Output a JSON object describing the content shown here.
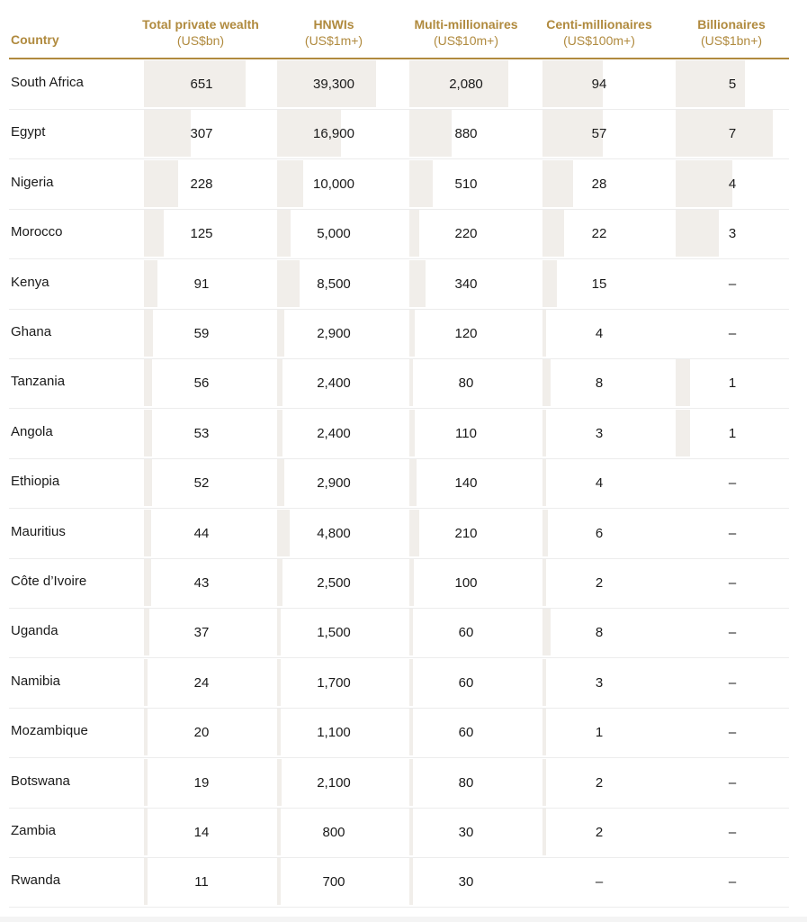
{
  "header": {
    "country": "Country",
    "columns": [
      {
        "title": "Total private wealth",
        "unit": "(US$bn)"
      },
      {
        "title": "HNWIs",
        "unit": "(US$1m+)"
      },
      {
        "title": "Multi-millionaires",
        "unit": "(US$10m+)"
      },
      {
        "title": "Centi-millionaires",
        "unit": "(US$100m+)"
      },
      {
        "title": "Billionaires",
        "unit": "(US$1bn+)"
      }
    ]
  },
  "colors": {
    "accent": "#b08a3e",
    "bar": "#f1eeea",
    "rule": "#ececec"
  },
  "rows": [
    {
      "country": "South Africa",
      "values": [
        "651",
        "39,300",
        "2,080",
        "94",
        "5"
      ],
      "fills": [
        0.88,
        0.87,
        0.87,
        0.53,
        0.61
      ]
    },
    {
      "country": "Egypt",
      "values": [
        "307",
        "16,900",
        "880",
        "57",
        "7"
      ],
      "fills": [
        0.41,
        0.56,
        0.37,
        0.53,
        0.86
      ]
    },
    {
      "country": "Nigeria",
      "values": [
        "228",
        "10,000",
        "510",
        "28",
        "4"
      ],
      "fills": [
        0.3,
        0.23,
        0.21,
        0.27,
        0.5
      ]
    },
    {
      "country": "Morocco",
      "values": [
        "125",
        "5,000",
        "220",
        "22",
        "3"
      ],
      "fills": [
        0.17,
        0.12,
        0.09,
        0.19,
        0.38
      ]
    },
    {
      "country": "Kenya",
      "values": [
        "91",
        "8,500",
        "340",
        "15",
        "–"
      ],
      "fills": [
        0.12,
        0.2,
        0.14,
        0.13,
        0
      ]
    },
    {
      "country": "Ghana",
      "values": [
        "59",
        "2,900",
        "120",
        "4",
        "–"
      ],
      "fills": [
        0.08,
        0.06,
        0.05,
        0.03,
        0
      ]
    },
    {
      "country": "Tanzania",
      "values": [
        "56",
        "2,400",
        "80",
        "8",
        "1"
      ],
      "fills": [
        0.07,
        0.05,
        0.03,
        0.07,
        0.13
      ]
    },
    {
      "country": "Angola",
      "values": [
        "53",
        "2,400",
        "110",
        "3",
        "1"
      ],
      "fills": [
        0.07,
        0.05,
        0.05,
        0.02,
        0.13
      ]
    },
    {
      "country": "Ethiopia",
      "values": [
        "52",
        "2,900",
        "140",
        "4",
        "–"
      ],
      "fills": [
        0.07,
        0.06,
        0.06,
        0.03,
        0
      ]
    },
    {
      "country": "Mauritius",
      "values": [
        "44",
        "4,800",
        "210",
        "6",
        "–"
      ],
      "fills": [
        0.06,
        0.11,
        0.09,
        0.05,
        0
      ]
    },
    {
      "country": "Côte d’Ivoire",
      "values": [
        "43",
        "2,500",
        "100",
        "2",
        "–"
      ],
      "fills": [
        0.06,
        0.05,
        0.04,
        0.02,
        0
      ]
    },
    {
      "country": "Uganda",
      "values": [
        "37",
        "1,500",
        "60",
        "8",
        "–"
      ],
      "fills": [
        0.05,
        0.03,
        0.03,
        0.07,
        0
      ]
    },
    {
      "country": "Namibia",
      "values": [
        "24",
        "1,700",
        "60",
        "3",
        "–"
      ],
      "fills": [
        0.03,
        0.03,
        0.03,
        0.02,
        0
      ]
    },
    {
      "country": "Mozambique",
      "values": [
        "20",
        "1,100",
        "60",
        "1",
        "–"
      ],
      "fills": [
        0.02,
        0.02,
        0.03,
        0.01,
        0
      ]
    },
    {
      "country": "Botswana",
      "values": [
        "19",
        "2,100",
        "80",
        "2",
        "–"
      ],
      "fills": [
        0.02,
        0.04,
        0.03,
        0.02,
        0
      ]
    },
    {
      "country": "Zambia",
      "values": [
        "14",
        "800",
        "30",
        "2",
        "–"
      ],
      "fills": [
        0.02,
        0.01,
        0.01,
        0.02,
        0
      ]
    },
    {
      "country": "Rwanda",
      "values": [
        "11",
        "700",
        "30",
        "–",
        "–"
      ],
      "fills": [
        0.01,
        0.01,
        0.01,
        0,
        0
      ]
    }
  ]
}
